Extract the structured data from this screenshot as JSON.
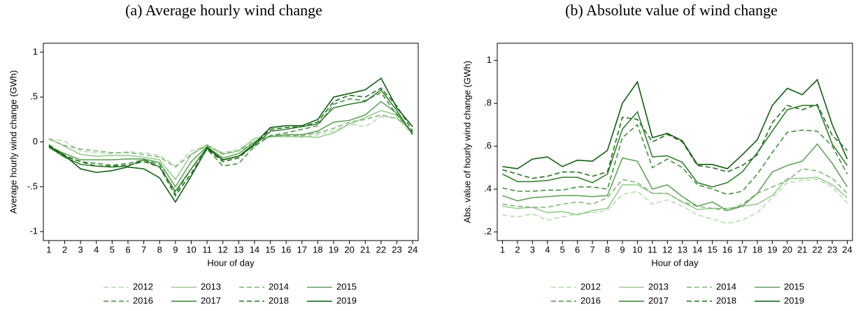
{
  "chart_data": [
    {
      "type": "line",
      "title": "(a) Average hourly wind change",
      "x_label": "Hour of day",
      "y_label": "Average hourly wind change (GWh)",
      "x": [
        1,
        2,
        3,
        4,
        5,
        6,
        7,
        8,
        9,
        10,
        11,
        12,
        13,
        14,
        15,
        16,
        17,
        18,
        19,
        20,
        21,
        22,
        23,
        24
      ],
      "xlim": [
        0.65,
        24.35
      ],
      "xticks": [
        1,
        2,
        3,
        4,
        5,
        6,
        7,
        8,
        9,
        10,
        11,
        12,
        13,
        14,
        15,
        16,
        17,
        18,
        19,
        20,
        21,
        22,
        23,
        24
      ],
      "ylim": [
        -1.1,
        1.1
      ],
      "yticks": [
        1,
        {
          "value": 0.5,
          "label": ".5"
        },
        0,
        {
          "value": -0.5,
          "label": "-.5"
        },
        -1
      ],
      "series": [
        {
          "name": "2012",
          "color": "#b5dcae",
          "dashed": true,
          "values": [
            0.03,
            0.01,
            -0.1,
            -0.12,
            -0.13,
            -0.11,
            -0.12,
            -0.15,
            -0.27,
            -0.1,
            -0.04,
            -0.12,
            -0.08,
            0.02,
            0.06,
            0.06,
            0.05,
            0.08,
            0.12,
            0.2,
            0.17,
            0.28,
            0.27,
            0.08
          ]
        },
        {
          "name": "2013",
          "color": "#98cc90",
          "dashed": false,
          "values": [
            0.04,
            -0.05,
            -0.14,
            -0.16,
            -0.15,
            -0.15,
            -0.17,
            -0.2,
            -0.42,
            -0.14,
            -0.03,
            -0.14,
            -0.1,
            0.04,
            0.06,
            0.06,
            0.06,
            0.05,
            0.1,
            0.2,
            0.27,
            0.35,
            0.3,
            0.1
          ]
        },
        {
          "name": "2014",
          "color": "#80b878",
          "dashed": true,
          "values": [
            0.03,
            -0.04,
            -0.08,
            -0.1,
            -0.12,
            -0.12,
            -0.14,
            -0.17,
            -0.28,
            -0.14,
            -0.04,
            -0.13,
            -0.1,
            0,
            0.06,
            0.07,
            0.07,
            0.1,
            0.15,
            0.22,
            0.25,
            0.3,
            0.26,
            0.12
          ]
        },
        {
          "name": "2015",
          "color": "#63a35b",
          "dashed": false,
          "values": [
            -0.05,
            -0.13,
            -0.2,
            -0.2,
            -0.2,
            -0.19,
            -0.19,
            -0.23,
            -0.5,
            -0.22,
            -0.05,
            -0.18,
            -0.13,
            0,
            0.06,
            0.08,
            0.08,
            0.12,
            0.22,
            0.24,
            0.3,
            0.45,
            0.32,
            0.1
          ]
        },
        {
          "name": "2016",
          "color": "#46903f",
          "dashed": true,
          "values": [
            -0.03,
            -0.15,
            -0.22,
            -0.24,
            -0.26,
            -0.24,
            -0.2,
            -0.25,
            -0.58,
            -0.3,
            -0.08,
            -0.27,
            -0.24,
            -0.05,
            0.07,
            0.1,
            0.14,
            0.18,
            0.42,
            0.48,
            0.46,
            0.55,
            0.3,
            0.1
          ]
        },
        {
          "name": "2017",
          "color": "#33802f",
          "dashed": false,
          "values": [
            -0.06,
            -0.17,
            -0.25,
            -0.27,
            -0.28,
            -0.27,
            -0.2,
            -0.28,
            -0.55,
            -0.3,
            -0.06,
            -0.2,
            -0.16,
            -0.04,
            0.12,
            0.14,
            0.17,
            0.2,
            0.38,
            0.42,
            0.45,
            0.58,
            0.35,
            0.08
          ]
        },
        {
          "name": "2018",
          "color": "#22701f",
          "dashed": true,
          "values": [
            -0.04,
            -0.16,
            -0.22,
            -0.27,
            -0.27,
            -0.26,
            -0.22,
            -0.28,
            -0.6,
            -0.35,
            -0.08,
            -0.22,
            -0.18,
            -0.02,
            0.14,
            0.16,
            0.17,
            0.22,
            0.45,
            0.52,
            0.5,
            0.6,
            0.4,
            0.12
          ]
        },
        {
          "name": "2019",
          "color": "#0f5e0f",
          "dashed": false,
          "values": [
            -0.05,
            -0.15,
            -0.3,
            -0.34,
            -0.32,
            -0.28,
            -0.3,
            -0.4,
            -0.67,
            -0.38,
            -0.07,
            -0.2,
            -0.16,
            -0.02,
            0.16,
            0.18,
            0.18,
            0.25,
            0.5,
            0.54,
            0.58,
            0.71,
            0.38,
            0.17
          ]
        }
      ]
    },
    {
      "type": "line",
      "title": "(b) Absolute value of wind change",
      "x_label": "Hour of day",
      "y_label": "Abs. value of hourly wind change (GWh)",
      "x": [
        1,
        2,
        3,
        4,
        5,
        6,
        7,
        8,
        9,
        10,
        11,
        12,
        13,
        14,
        15,
        16,
        17,
        18,
        19,
        20,
        21,
        22,
        23,
        24
      ],
      "xlim": [
        0.65,
        24.35
      ],
      "xticks": [
        1,
        2,
        3,
        4,
        5,
        6,
        7,
        8,
        9,
        10,
        11,
        12,
        13,
        14,
        15,
        16,
        17,
        18,
        19,
        20,
        21,
        22,
        23,
        24
      ],
      "ylim": [
        0.16,
        1.08
      ],
      "yticks": [
        {
          "value": 0.2,
          "label": ".2"
        },
        {
          "value": 0.4,
          "label": ".4"
        },
        {
          "value": 0.6,
          "label": ".6"
        },
        {
          "value": 0.8,
          "label": ".8"
        },
        1
      ],
      "series": [
        {
          "name": "2012",
          "color": "#b5dcae",
          "dashed": true,
          "values": [
            0.28,
            0.27,
            0.285,
            0.255,
            0.27,
            0.285,
            0.29,
            0.3,
            0.375,
            0.39,
            0.33,
            0.35,
            0.32,
            0.28,
            0.26,
            0.24,
            0.255,
            0.29,
            0.36,
            0.43,
            0.44,
            0.445,
            0.41,
            0.335
          ]
        },
        {
          "name": "2013",
          "color": "#98cc90",
          "dashed": false,
          "values": [
            0.32,
            0.31,
            0.315,
            0.29,
            0.295,
            0.28,
            0.3,
            0.31,
            0.42,
            0.42,
            0.38,
            0.38,
            0.34,
            0.305,
            0.31,
            0.31,
            0.32,
            0.33,
            0.37,
            0.45,
            0.45,
            0.455,
            0.42,
            0.36
          ]
        },
        {
          "name": "2014",
          "color": "#80b878",
          "dashed": true,
          "values": [
            0.33,
            0.32,
            0.315,
            0.315,
            0.33,
            0.34,
            0.33,
            0.36,
            0.445,
            0.43,
            0.38,
            0.38,
            0.34,
            0.32,
            0.31,
            0.3,
            0.33,
            0.38,
            0.41,
            0.44,
            0.495,
            0.485,
            0.45,
            0.38
          ]
        },
        {
          "name": "2015",
          "color": "#63a35b",
          "dashed": false,
          "values": [
            0.37,
            0.345,
            0.36,
            0.365,
            0.37,
            0.37,
            0.365,
            0.37,
            0.545,
            0.53,
            0.4,
            0.42,
            0.365,
            0.32,
            0.34,
            0.3,
            0.32,
            0.38,
            0.48,
            0.51,
            0.53,
            0.61,
            0.52,
            0.41
          ]
        },
        {
          "name": "2016",
          "color": "#46903f",
          "dashed": true,
          "values": [
            0.405,
            0.39,
            0.39,
            0.395,
            0.395,
            0.41,
            0.41,
            0.4,
            0.64,
            0.7,
            0.5,
            0.54,
            0.5,
            0.42,
            0.4,
            0.375,
            0.39,
            0.47,
            0.57,
            0.665,
            0.675,
            0.67,
            0.6,
            0.47
          ]
        },
        {
          "name": "2017",
          "color": "#33802f",
          "dashed": false,
          "values": [
            0.47,
            0.435,
            0.435,
            0.44,
            0.455,
            0.455,
            0.43,
            0.47,
            0.68,
            0.76,
            0.55,
            0.555,
            0.525,
            0.43,
            0.41,
            0.43,
            0.48,
            0.57,
            0.67,
            0.77,
            0.79,
            0.79,
            0.61,
            0.51
          ]
        },
        {
          "name": "2018",
          "color": "#22701f",
          "dashed": true,
          "values": [
            0.49,
            0.47,
            0.45,
            0.46,
            0.48,
            0.48,
            0.46,
            0.48,
            0.735,
            0.725,
            0.62,
            0.655,
            0.62,
            0.51,
            0.5,
            0.48,
            0.51,
            0.56,
            0.71,
            0.79,
            0.77,
            0.795,
            0.65,
            0.58
          ]
        },
        {
          "name": "2019",
          "color": "#0f5e0f",
          "dashed": false,
          "values": [
            0.505,
            0.495,
            0.54,
            0.55,
            0.505,
            0.535,
            0.53,
            0.58,
            0.8,
            0.9,
            0.64,
            0.66,
            0.625,
            0.515,
            0.515,
            0.495,
            0.56,
            0.63,
            0.79,
            0.87,
            0.84,
            0.91,
            0.7,
            0.54
          ]
        }
      ]
    }
  ]
}
